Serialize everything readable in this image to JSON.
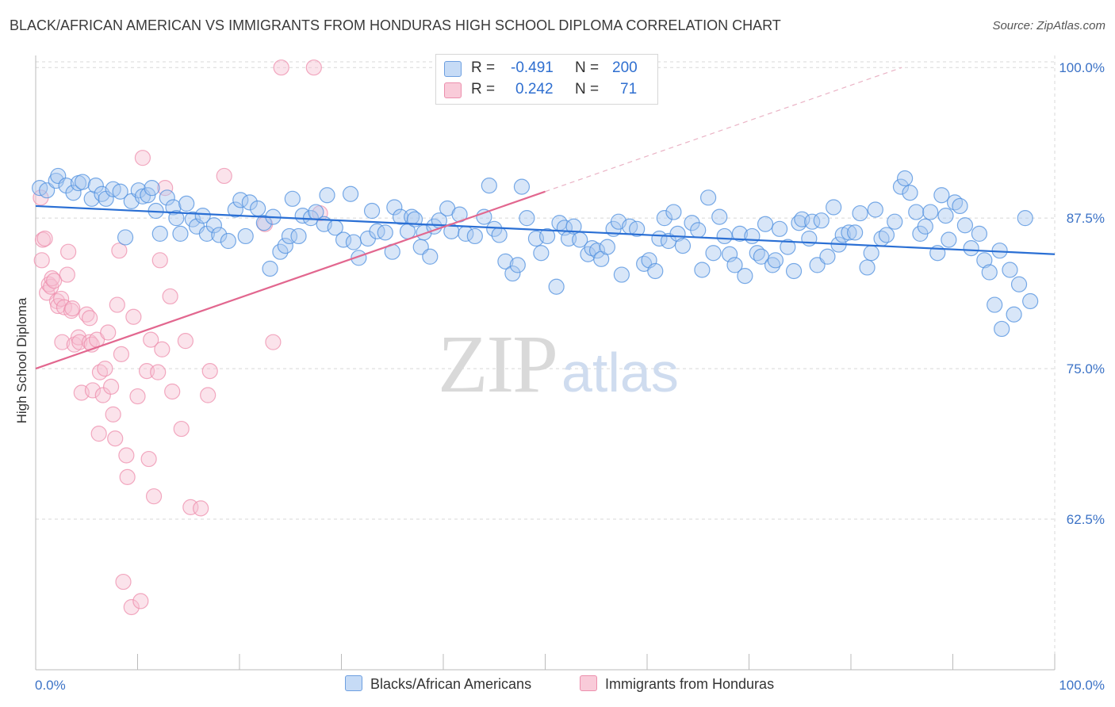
{
  "title": "BLACK/AFRICAN AMERICAN VS IMMIGRANTS FROM HONDURAS HIGH SCHOOL DIPLOMA CORRELATION CHART",
  "source": "Source: ZipAtlas.com",
  "watermark": {
    "zip": "ZIP",
    "atlas": "atlas"
  },
  "legend": {
    "rows": [
      {
        "r_label": "R =",
        "r_value": "-0.491",
        "n_label": "N =",
        "n_value": "200",
        "color": "#9cc0ec"
      },
      {
        "r_label": "R =",
        "r_value": "0.242",
        "n_label": "N =",
        "n_value": "71",
        "color": "#f5b3c6"
      }
    ]
  },
  "bottom_legend": [
    {
      "label": "Blacks/African Americans",
      "color": "#9cc0ec"
    },
    {
      "label": "Immigrants from Honduras",
      "color": "#f5b3c6"
    }
  ],
  "chart_data": {
    "type": "scatter",
    "title": "BLACK/AFRICAN AMERICAN VS IMMIGRANTS FROM HONDURAS HIGH SCHOOL DIPLOMA CORRELATION CHART",
    "xlabel": "",
    "ylabel": "High School Diploma",
    "xlim": [
      0,
      100
    ],
    "ylim": [
      50,
      101
    ],
    "x_tick_labels": [
      "0.0%",
      "100.0%"
    ],
    "y_ticks": [
      62.5,
      75.0,
      87.5,
      100.0
    ],
    "y_tick_labels": [
      "62.5%",
      "75.0%",
      "87.5%",
      "100.0%"
    ],
    "grid": true,
    "series": [
      {
        "name": "Blacks/African Americans",
        "color": "#4d8fdf",
        "fill": "#a9c8f0",
        "trend": {
          "x": [
            0,
            100
          ],
          "y": [
            88.5,
            84.5
          ],
          "color": "#2a6fd4"
        },
        "points": [
          [
            0.4,
            90.0
          ],
          [
            1.1,
            89.8
          ],
          [
            2.0,
            90.6
          ],
          [
            2.2,
            91.0
          ],
          [
            3.0,
            90.2
          ],
          [
            3.7,
            89.6
          ],
          [
            4.2,
            90.4
          ],
          [
            4.6,
            90.5
          ],
          [
            5.5,
            89.1
          ],
          [
            5.9,
            90.2
          ],
          [
            6.5,
            89.5
          ],
          [
            6.9,
            89.1
          ],
          [
            7.6,
            89.9
          ],
          [
            8.3,
            89.7
          ],
          [
            8.8,
            85.9
          ],
          [
            9.4,
            88.9
          ],
          [
            10.1,
            89.8
          ],
          [
            10.5,
            89.3
          ],
          [
            11.0,
            89.4
          ],
          [
            11.4,
            90.0
          ],
          [
            11.8,
            88.1
          ],
          [
            12.2,
            86.2
          ],
          [
            12.9,
            89.2
          ],
          [
            13.5,
            88.4
          ],
          [
            13.8,
            87.5
          ],
          [
            14.2,
            86.2
          ],
          [
            14.8,
            88.7
          ],
          [
            15.4,
            87.4
          ],
          [
            15.8,
            86.8
          ],
          [
            16.4,
            87.7
          ],
          [
            16.8,
            86.2
          ],
          [
            17.5,
            86.9
          ],
          [
            18.0,
            86.1
          ],
          [
            18.9,
            85.6
          ],
          [
            19.6,
            88.2
          ],
          [
            20.1,
            89.0
          ],
          [
            20.6,
            86.0
          ],
          [
            21.0,
            88.8
          ],
          [
            21.8,
            88.3
          ],
          [
            22.4,
            87.1
          ],
          [
            23.0,
            83.3
          ],
          [
            23.3,
            87.6
          ],
          [
            24.0,
            84.7
          ],
          [
            24.5,
            85.2
          ],
          [
            24.9,
            86.0
          ],
          [
            25.2,
            89.1
          ],
          [
            25.8,
            86.0
          ],
          [
            26.2,
            87.7
          ],
          [
            27.0,
            87.5
          ],
          [
            27.5,
            88.0
          ],
          [
            28.3,
            87.0
          ],
          [
            28.6,
            89.4
          ],
          [
            29.4,
            86.7
          ],
          [
            30.2,
            85.7
          ],
          [
            30.9,
            89.5
          ],
          [
            31.2,
            85.5
          ],
          [
            31.7,
            84.2
          ],
          [
            32.6,
            85.8
          ],
          [
            33.0,
            88.1
          ],
          [
            33.5,
            86.4
          ],
          [
            34.3,
            86.3
          ],
          [
            35.0,
            84.7
          ],
          [
            35.2,
            88.4
          ],
          [
            35.8,
            87.6
          ],
          [
            36.5,
            86.4
          ],
          [
            36.9,
            87.6
          ],
          [
            37.2,
            87.4
          ],
          [
            37.8,
            85.1
          ],
          [
            38.1,
            86.3
          ],
          [
            38.7,
            84.3
          ],
          [
            39.1,
            86.8
          ],
          [
            39.6,
            87.3
          ],
          [
            40.4,
            88.3
          ],
          [
            40.8,
            86.4
          ],
          [
            41.6,
            87.8
          ],
          [
            42.2,
            86.2
          ],
          [
            43.1,
            86.0
          ],
          [
            44.0,
            87.6
          ],
          [
            44.5,
            90.2
          ],
          [
            45.0,
            86.6
          ],
          [
            45.5,
            86.1
          ],
          [
            46.1,
            83.9
          ],
          [
            46.8,
            82.9
          ],
          [
            47.3,
            83.6
          ],
          [
            47.7,
            90.1
          ],
          [
            48.2,
            87.5
          ],
          [
            49.1,
            85.8
          ],
          [
            49.6,
            84.6
          ],
          [
            50.2,
            86.0
          ],
          [
            51.1,
            81.8
          ],
          [
            51.4,
            87.1
          ],
          [
            51.9,
            86.7
          ],
          [
            52.3,
            85.8
          ],
          [
            52.8,
            86.8
          ],
          [
            53.4,
            85.7
          ],
          [
            54.2,
            84.5
          ],
          [
            54.6,
            85.0
          ],
          [
            55.1,
            84.8
          ],
          [
            55.5,
            84.1
          ],
          [
            56.1,
            85.1
          ],
          [
            56.7,
            86.6
          ],
          [
            57.2,
            87.2
          ],
          [
            57.5,
            82.8
          ],
          [
            58.3,
            86.8
          ],
          [
            59.0,
            86.6
          ],
          [
            59.7,
            83.7
          ],
          [
            60.2,
            84.0
          ],
          [
            60.8,
            83.1
          ],
          [
            61.2,
            85.8
          ],
          [
            61.7,
            87.5
          ],
          [
            62.1,
            85.6
          ],
          [
            62.6,
            88.0
          ],
          [
            63.0,
            86.2
          ],
          [
            63.5,
            85.2
          ],
          [
            64.4,
            87.1
          ],
          [
            65.0,
            86.5
          ],
          [
            65.4,
            83.2
          ],
          [
            66.0,
            89.2
          ],
          [
            66.5,
            84.6
          ],
          [
            67.1,
            87.6
          ],
          [
            67.6,
            86.0
          ],
          [
            68.1,
            84.5
          ],
          [
            68.6,
            83.6
          ],
          [
            69.1,
            86.2
          ],
          [
            69.6,
            82.7
          ],
          [
            70.3,
            86.0
          ],
          [
            70.8,
            84.6
          ],
          [
            71.2,
            84.3
          ],
          [
            71.6,
            87.0
          ],
          [
            72.3,
            83.6
          ],
          [
            72.6,
            84.0
          ],
          [
            73.0,
            86.6
          ],
          [
            73.8,
            85.1
          ],
          [
            74.4,
            83.1
          ],
          [
            74.9,
            87.1
          ],
          [
            75.2,
            87.4
          ],
          [
            75.9,
            85.8
          ],
          [
            76.2,
            87.2
          ],
          [
            76.7,
            83.6
          ],
          [
            77.1,
            87.3
          ],
          [
            77.7,
            84.3
          ],
          [
            78.3,
            88.4
          ],
          [
            78.8,
            85.3
          ],
          [
            79.2,
            86.1
          ],
          [
            79.8,
            86.3
          ],
          [
            80.4,
            86.3
          ],
          [
            80.9,
            87.9
          ],
          [
            81.6,
            83.4
          ],
          [
            82.0,
            84.6
          ],
          [
            82.4,
            88.2
          ],
          [
            83.0,
            85.8
          ],
          [
            83.5,
            86.1
          ],
          [
            84.3,
            87.2
          ],
          [
            84.9,
            90.1
          ],
          [
            85.3,
            90.8
          ],
          [
            85.8,
            89.6
          ],
          [
            86.4,
            88.0
          ],
          [
            86.8,
            86.2
          ],
          [
            87.3,
            86.8
          ],
          [
            87.8,
            88.0
          ],
          [
            88.5,
            84.6
          ],
          [
            88.9,
            89.4
          ],
          [
            89.3,
            87.7
          ],
          [
            89.6,
            85.7
          ],
          [
            90.2,
            88.8
          ],
          [
            90.7,
            88.5
          ],
          [
            91.2,
            86.9
          ],
          [
            91.8,
            85.0
          ],
          [
            92.6,
            86.2
          ],
          [
            93.1,
            84.0
          ],
          [
            93.6,
            83.0
          ],
          [
            94.1,
            80.3
          ],
          [
            94.6,
            84.8
          ],
          [
            94.8,
            78.3
          ],
          [
            95.6,
            83.2
          ],
          [
            96.0,
            79.5
          ],
          [
            96.5,
            82.0
          ],
          [
            97.1,
            87.5
          ],
          [
            97.6,
            80.6
          ]
        ]
      },
      {
        "name": "Immigrants from Honduras",
        "color": "#ee8eac",
        "fill": "#f7c2d2",
        "trend": {
          "x": [
            0,
            50
          ],
          "y": [
            75.0,
            89.7
          ],
          "color": "#e2678f"
        },
        "trend_extension": {
          "x": [
            50,
            85
          ],
          "y": [
            89.7,
            100.0
          ]
        },
        "points": [
          [
            0.5,
            89.2
          ],
          [
            0.6,
            84.0
          ],
          [
            0.7,
            85.7
          ],
          [
            0.9,
            85.8
          ],
          [
            1.1,
            81.3
          ],
          [
            1.3,
            82.0
          ],
          [
            1.5,
            81.8
          ],
          [
            1.6,
            82.5
          ],
          [
            1.8,
            82.3
          ],
          [
            2.1,
            80.6
          ],
          [
            2.2,
            80.2
          ],
          [
            2.5,
            80.8
          ],
          [
            2.6,
            77.2
          ],
          [
            2.8,
            80.1
          ],
          [
            3.1,
            82.8
          ],
          [
            3.2,
            84.7
          ],
          [
            3.5,
            79.8
          ],
          [
            3.6,
            80.0
          ],
          [
            3.8,
            77.0
          ],
          [
            4.2,
            77.6
          ],
          [
            4.3,
            77.2
          ],
          [
            4.5,
            73.0
          ],
          [
            5.0,
            79.5
          ],
          [
            5.3,
            77.2
          ],
          [
            5.3,
            79.2
          ],
          [
            5.5,
            77.0
          ],
          [
            5.6,
            73.2
          ],
          [
            6.0,
            77.4
          ],
          [
            6.2,
            69.6
          ],
          [
            6.3,
            74.7
          ],
          [
            6.6,
            72.8
          ],
          [
            6.8,
            75.0
          ],
          [
            7.1,
            78.0
          ],
          [
            7.4,
            73.5
          ],
          [
            7.6,
            71.2
          ],
          [
            7.8,
            69.2
          ],
          [
            8.0,
            80.3
          ],
          [
            8.2,
            84.8
          ],
          [
            8.4,
            76.2
          ],
          [
            8.6,
            57.3
          ],
          [
            8.9,
            67.8
          ],
          [
            9.0,
            66.0
          ],
          [
            9.4,
            55.2
          ],
          [
            9.6,
            79.3
          ],
          [
            10.0,
            72.7
          ],
          [
            10.3,
            55.7
          ],
          [
            10.5,
            92.5
          ],
          [
            10.9,
            74.8
          ],
          [
            11.1,
            67.5
          ],
          [
            11.3,
            77.4
          ],
          [
            11.6,
            64.4
          ],
          [
            12.0,
            74.7
          ],
          [
            12.2,
            84.0
          ],
          [
            12.4,
            76.6
          ],
          [
            12.7,
            90.0
          ],
          [
            13.2,
            81.0
          ],
          [
            13.4,
            73.1
          ],
          [
            14.3,
            70.0
          ],
          [
            14.7,
            77.3
          ],
          [
            15.2,
            63.5
          ],
          [
            16.2,
            63.4
          ],
          [
            16.9,
            72.8
          ],
          [
            17.1,
            74.8
          ],
          [
            18.5,
            91.0
          ],
          [
            22.5,
            87.0
          ],
          [
            23.3,
            77.2
          ],
          [
            24.1,
            100.0
          ],
          [
            27.3,
            100.0
          ],
          [
            27.9,
            87.9
          ]
        ]
      }
    ]
  }
}
